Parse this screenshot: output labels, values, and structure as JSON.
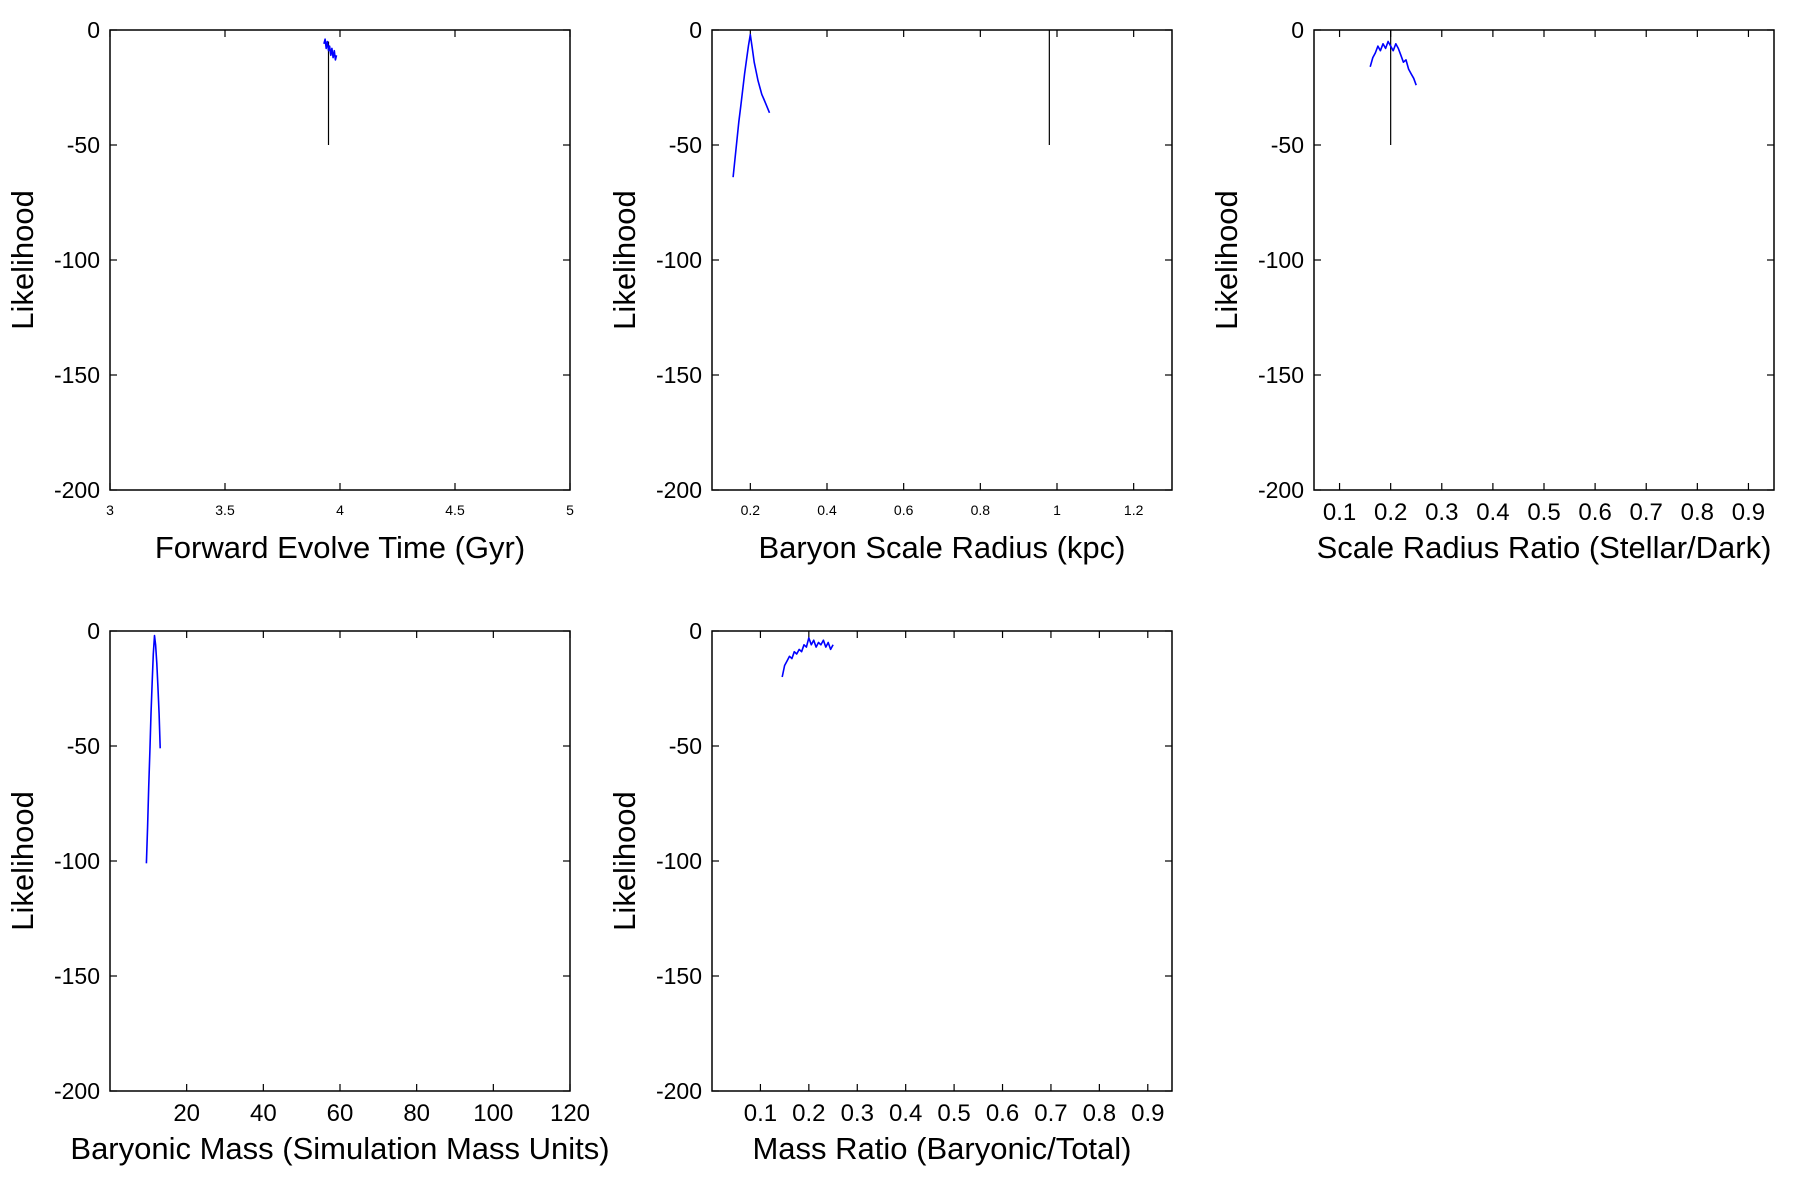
{
  "figure": {
    "colors": {
      "axes": "#000000",
      "series": "#0000ff",
      "marker": "#000000"
    }
  },
  "chart_data": [
    {
      "type": "line",
      "xlabel": "Forward Evolve Time (Gyr)",
      "ylabel": "Likelihood",
      "xlim": [
        3,
        5
      ],
      "ylim": [
        -200,
        0
      ],
      "xticks": [
        "3",
        "3.5",
        "4",
        "4.5",
        "5"
      ],
      "yticks": [
        "0",
        "-50",
        "-100",
        "-150",
        "-200"
      ],
      "xtick_size": "small",
      "marker_line": {
        "x": 3.95,
        "y_from": -50,
        "y_to": -5
      },
      "series": [
        {
          "x": [
            3.93,
            3.935,
            3.94,
            3.945,
            3.95,
            3.955,
            3.96,
            3.965,
            3.97,
            3.975,
            3.98,
            3.985
          ],
          "y": [
            -6,
            -4,
            -8,
            -5,
            -9,
            -7,
            -11,
            -8,
            -12,
            -9,
            -13,
            -11
          ]
        }
      ]
    },
    {
      "type": "line",
      "xlabel": "Baryon Scale Radius (kpc)",
      "ylabel": "Likelihood",
      "xlim": [
        0.1,
        1.3
      ],
      "ylim": [
        -200,
        0
      ],
      "xticks": [
        "0.2",
        "0.4",
        "0.6",
        "0.8",
        "1",
        "1.2"
      ],
      "yticks": [
        "0",
        "-50",
        "-100",
        "-150",
        "-200"
      ],
      "xtick_size": "small",
      "marker_line": {
        "x": 0.98,
        "y_from": -50,
        "y_to": 0
      },
      "series": [
        {
          "x": [
            0.155,
            0.16,
            0.165,
            0.17,
            0.175,
            0.18,
            0.185,
            0.19,
            0.195,
            0.2,
            0.205,
            0.21,
            0.215,
            0.22,
            0.225,
            0.23,
            0.235,
            0.24,
            0.245,
            0.25
          ],
          "y": [
            -64,
            -56,
            -48,
            -40,
            -33,
            -26,
            -19,
            -13,
            -7,
            -2,
            -8,
            -14,
            -18,
            -22,
            -25,
            -28,
            -30,
            -32,
            -34,
            -36
          ]
        }
      ]
    },
    {
      "type": "line",
      "xlabel": "Scale Radius Ratio (Stellar/Dark)",
      "ylabel": "Likelihood",
      "xlim": [
        0.05,
        0.95
      ],
      "ylim": [
        -200,
        0
      ],
      "xticks": [
        "0.1",
        "0.2",
        "0.3",
        "0.4",
        "0.5",
        "0.6",
        "0.7",
        "0.8",
        "0.9"
      ],
      "yticks": [
        "0",
        "-50",
        "-100",
        "-150",
        "-200"
      ],
      "xtick_size": "large",
      "marker_line": {
        "x": 0.2,
        "y_from": -50,
        "y_to": 0
      },
      "series": [
        {
          "x": [
            0.16,
            0.165,
            0.17,
            0.175,
            0.18,
            0.185,
            0.19,
            0.195,
            0.2,
            0.205,
            0.21,
            0.215,
            0.22,
            0.225,
            0.23,
            0.235,
            0.24,
            0.245,
            0.25
          ],
          "y": [
            -16,
            -12,
            -10,
            -7,
            -9,
            -6,
            -8,
            -5,
            -7,
            -9,
            -6,
            -8,
            -11,
            -14,
            -13,
            -17,
            -19,
            -21,
            -24
          ]
        }
      ]
    },
    {
      "type": "line",
      "xlabel": "Baryonic Mass (Simulation Mass Units)",
      "ylabel": "Likelihood",
      "xlim": [
        0,
        120
      ],
      "ylim": [
        -200,
        0
      ],
      "xticks": [
        "20",
        "40",
        "60",
        "80",
        "100",
        "120"
      ],
      "yticks": [
        "0",
        "-50",
        "-100",
        "-150",
        "-200"
      ],
      "xtick_size": "large",
      "series": [
        {
          "x": [
            9.5,
            9.8,
            10.1,
            10.4,
            10.7,
            11.0,
            11.3,
            11.6,
            11.9,
            12.2,
            12.5,
            12.8,
            13.1
          ],
          "y": [
            -101,
            -85,
            -68,
            -52,
            -36,
            -22,
            -10,
            -2,
            -6,
            -14,
            -24,
            -36,
            -51
          ]
        }
      ]
    },
    {
      "type": "line",
      "xlabel": "Mass Ratio (Baryonic/Total)",
      "ylabel": "Likelihood",
      "xlim": [
        0,
        0.95
      ],
      "ylim": [
        -200,
        0
      ],
      "xticks": [
        "0.1",
        "0.2",
        "0.3",
        "0.4",
        "0.5",
        "0.6",
        "0.7",
        "0.8",
        "0.9"
      ],
      "yticks": [
        "0",
        "-50",
        "-100",
        "-150",
        "-200"
      ],
      "xtick_size": "large",
      "series": [
        {
          "x": [
            0.145,
            0.15,
            0.155,
            0.16,
            0.165,
            0.17,
            0.175,
            0.18,
            0.185,
            0.19,
            0.195,
            0.2,
            0.205,
            0.21,
            0.215,
            0.22,
            0.225,
            0.23,
            0.235,
            0.24,
            0.245,
            0.25
          ],
          "y": [
            -20,
            -15,
            -13,
            -11,
            -12,
            -9,
            -10,
            -8,
            -9,
            -6,
            -7,
            -3,
            -6,
            -4,
            -7,
            -5,
            -6,
            -4,
            -7,
            -5,
            -8,
            -6
          ]
        }
      ]
    }
  ]
}
